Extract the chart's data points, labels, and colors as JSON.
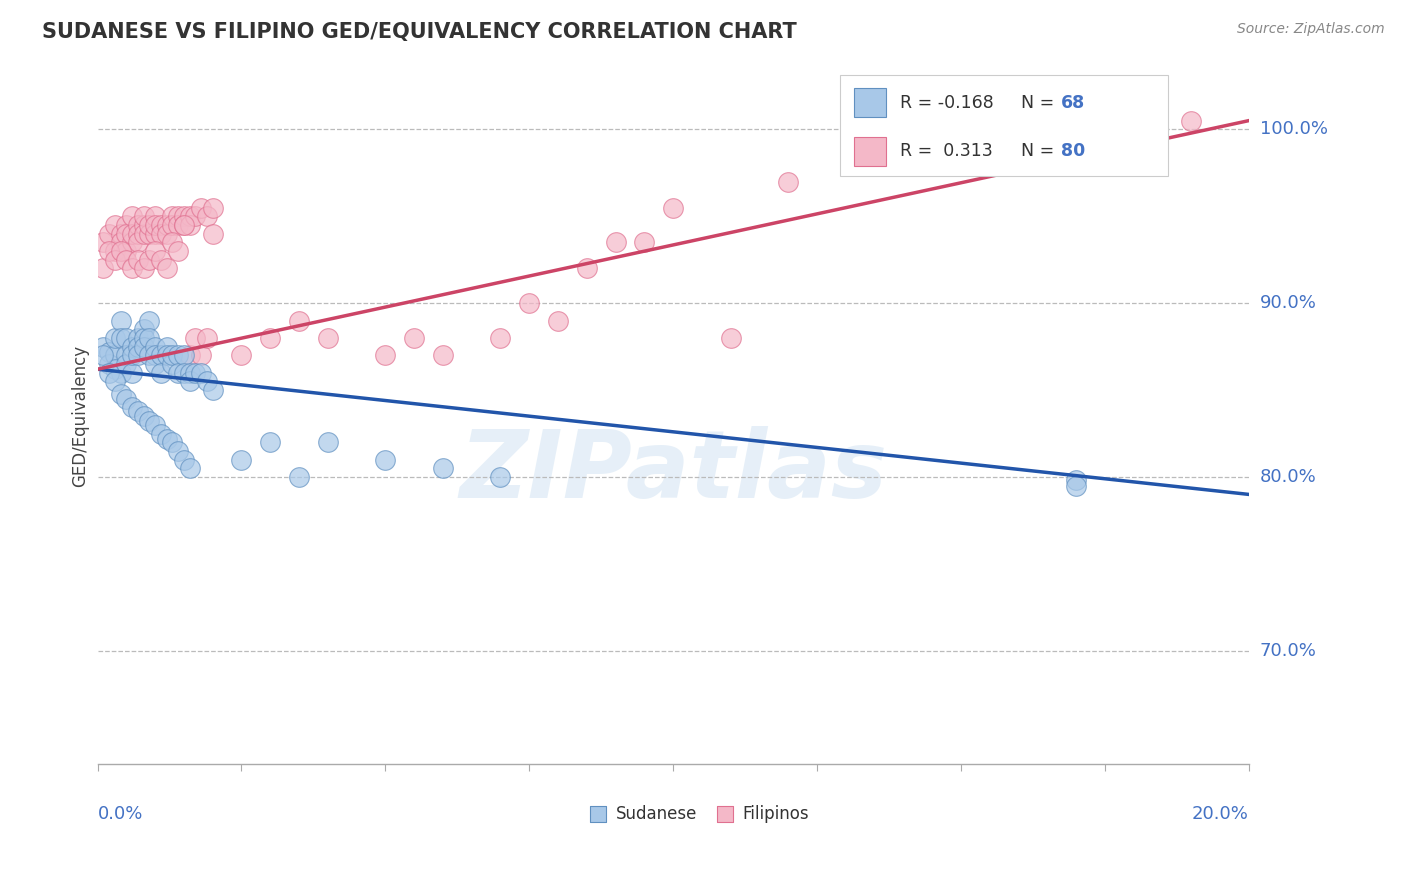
{
  "title": "SUDANESE VS FILIPINO GED/EQUIVALENCY CORRELATION CHART",
  "source": "Source: ZipAtlas.com",
  "ylabel": "GED/Equivalency",
  "ytick_labels": [
    "70.0%",
    "80.0%",
    "90.0%",
    "100.0%"
  ],
  "ytick_vals": [
    0.7,
    0.8,
    0.9,
    1.0
  ],
  "xlim": [
    0.0,
    0.2
  ],
  "ylim": [
    0.635,
    1.035
  ],
  "sudanese_color": "#a8c8e8",
  "filipino_color": "#f4b8c8",
  "sudanese_edge": "#6090c0",
  "filipino_edge": "#e07090",
  "trendline_blue": "#2255aa",
  "trendline_pink": "#cc4466",
  "legend_R_blue": "-0.168",
  "legend_N_blue": "68",
  "legend_R_pink": "0.313",
  "legend_N_pink": "80",
  "watermark": "ZIPatlas",
  "sudanese_x": [
    0.001,
    0.002,
    0.002,
    0.003,
    0.003,
    0.003,
    0.004,
    0.004,
    0.004,
    0.005,
    0.005,
    0.005,
    0.006,
    0.006,
    0.006,
    0.007,
    0.007,
    0.007,
    0.008,
    0.008,
    0.008,
    0.009,
    0.009,
    0.009,
    0.01,
    0.01,
    0.01,
    0.011,
    0.011,
    0.012,
    0.012,
    0.013,
    0.013,
    0.014,
    0.014,
    0.015,
    0.015,
    0.016,
    0.016,
    0.017,
    0.018,
    0.019,
    0.02,
    0.001,
    0.002,
    0.003,
    0.004,
    0.005,
    0.006,
    0.007,
    0.008,
    0.009,
    0.01,
    0.011,
    0.012,
    0.013,
    0.014,
    0.015,
    0.016,
    0.025,
    0.03,
    0.035,
    0.04,
    0.05,
    0.06,
    0.07,
    0.17,
    0.17
  ],
  "sudanese_y": [
    0.875,
    0.872,
    0.865,
    0.87,
    0.88,
    0.862,
    0.89,
    0.88,
    0.86,
    0.88,
    0.87,
    0.865,
    0.875,
    0.86,
    0.87,
    0.88,
    0.875,
    0.87,
    0.885,
    0.88,
    0.875,
    0.89,
    0.88,
    0.87,
    0.875,
    0.87,
    0.865,
    0.87,
    0.86,
    0.875,
    0.87,
    0.865,
    0.87,
    0.87,
    0.86,
    0.87,
    0.86,
    0.86,
    0.855,
    0.86,
    0.86,
    0.855,
    0.85,
    0.87,
    0.86,
    0.855,
    0.848,
    0.845,
    0.84,
    0.838,
    0.835,
    0.832,
    0.83,
    0.825,
    0.822,
    0.82,
    0.815,
    0.81,
    0.805,
    0.81,
    0.82,
    0.8,
    0.82,
    0.81,
    0.805,
    0.8,
    0.798,
    0.795
  ],
  "filipino_x": [
    0.001,
    0.002,
    0.003,
    0.003,
    0.004,
    0.004,
    0.005,
    0.005,
    0.005,
    0.006,
    0.006,
    0.006,
    0.007,
    0.007,
    0.007,
    0.008,
    0.008,
    0.008,
    0.009,
    0.009,
    0.01,
    0.01,
    0.01,
    0.011,
    0.011,
    0.012,
    0.012,
    0.013,
    0.013,
    0.014,
    0.014,
    0.015,
    0.015,
    0.016,
    0.016,
    0.017,
    0.018,
    0.019,
    0.02,
    0.001,
    0.002,
    0.003,
    0.004,
    0.005,
    0.006,
    0.007,
    0.008,
    0.009,
    0.01,
    0.011,
    0.012,
    0.013,
    0.014,
    0.015,
    0.016,
    0.017,
    0.018,
    0.019,
    0.02,
    0.025,
    0.03,
    0.035,
    0.04,
    0.05,
    0.055,
    0.06,
    0.07,
    0.075,
    0.08,
    0.085,
    0.09,
    0.1,
    0.12,
    0.14,
    0.16,
    0.18,
    0.18,
    0.19,
    0.095,
    0.11
  ],
  "filipino_y": [
    0.935,
    0.94,
    0.93,
    0.945,
    0.94,
    0.935,
    0.945,
    0.93,
    0.94,
    0.95,
    0.935,
    0.94,
    0.945,
    0.94,
    0.935,
    0.945,
    0.94,
    0.95,
    0.94,
    0.945,
    0.95,
    0.94,
    0.945,
    0.945,
    0.94,
    0.945,
    0.94,
    0.95,
    0.945,
    0.95,
    0.945,
    0.95,
    0.945,
    0.95,
    0.945,
    0.95,
    0.955,
    0.95,
    0.955,
    0.92,
    0.93,
    0.925,
    0.93,
    0.925,
    0.92,
    0.925,
    0.92,
    0.925,
    0.93,
    0.925,
    0.92,
    0.935,
    0.93,
    0.945,
    0.87,
    0.88,
    0.87,
    0.88,
    0.94,
    0.87,
    0.88,
    0.89,
    0.88,
    0.87,
    0.88,
    0.87,
    0.88,
    0.9,
    0.89,
    0.92,
    0.935,
    0.955,
    0.97,
    0.98,
    0.99,
    0.995,
    1.0,
    1.005,
    0.935,
    0.88
  ]
}
